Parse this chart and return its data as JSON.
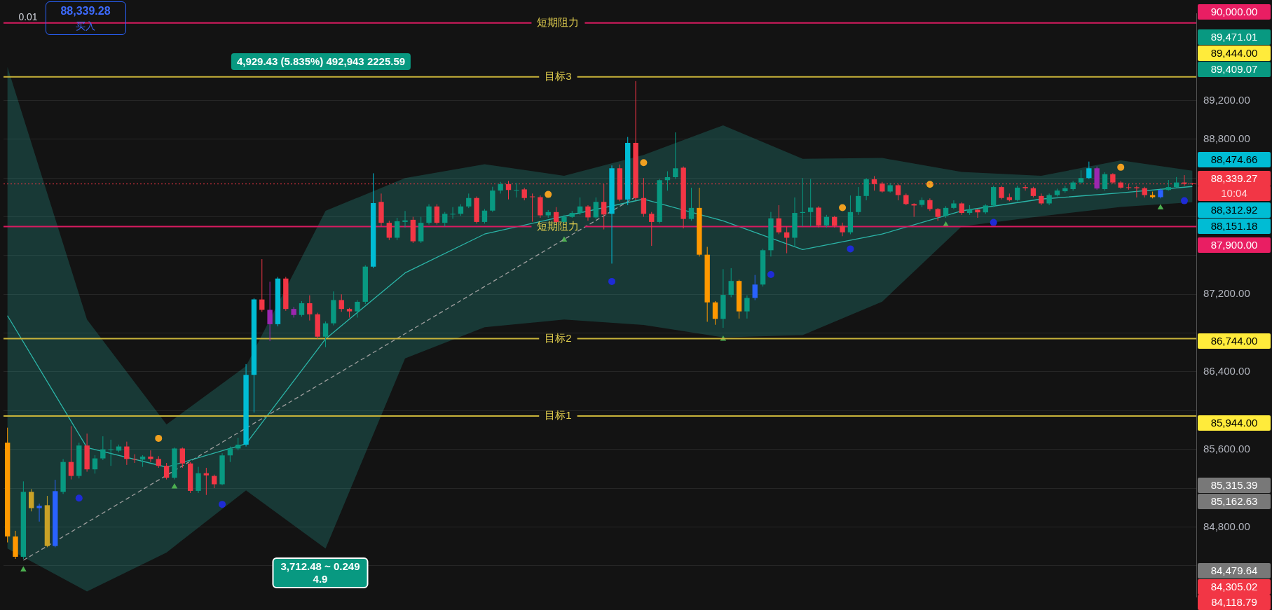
{
  "chart_data": {
    "type": "candlestick",
    "categories": [
      null,
      null,
      null,
      null,
      null,
      null,
      null,
      null,
      null,
      null,
      null,
      null,
      null,
      null,
      null,
      null,
      null,
      null,
      null,
      null,
      null,
      null,
      null,
      null,
      null,
      null,
      null,
      null,
      null,
      null,
      null,
      null,
      null,
      null,
      null,
      null,
      null,
      null,
      null,
      null,
      null,
      null,
      null,
      null,
      null,
      null,
      null,
      null,
      null,
      null,
      null,
      null,
      null,
      null,
      null,
      null,
      null,
      null,
      null,
      null,
      null,
      null,
      null,
      null,
      null,
      null,
      null,
      null,
      null,
      null,
      null,
      null,
      null,
      null,
      null,
      null,
      null,
      null,
      null,
      null,
      null,
      null,
      null,
      null,
      null,
      null,
      null,
      null,
      null,
      null,
      null,
      null,
      null,
      null,
      null,
      null,
      null,
      null,
      null,
      null,
      null,
      null,
      null,
      null,
      null,
      null,
      null,
      null,
      null,
      null,
      null,
      null,
      null,
      null,
      null,
      null,
      null,
      null,
      null,
      null,
      null,
      null,
      null,
      null,
      null,
      null,
      null,
      null,
      null,
      null,
      null,
      null,
      null,
      null,
      null,
      null,
      null,
      null,
      null,
      null,
      null,
      null,
      null,
      null,
      null,
      null,
      null,
      null,
      null,
      null
    ],
    "ohlc": [
      [
        85670,
        85824,
        84640,
        84701
      ],
      [
        84701,
        84760,
        84470,
        84492
      ],
      [
        84492,
        85270,
        84470,
        85162
      ],
      [
        85162,
        85190,
        84960,
        84994
      ],
      [
        84994,
        85040,
        84855,
        85018
      ],
      [
        84603,
        85120,
        84590,
        85024
      ],
      [
        84603,
        85286,
        84590,
        85169
      ],
      [
        85162,
        85500,
        85140,
        85470
      ],
      [
        85470,
        85840,
        85290,
        85326
      ],
      [
        85326,
        85670,
        85300,
        85640
      ],
      [
        85640,
        85763,
        85370,
        85394
      ],
      [
        85394,
        85540,
        85350,
        85507
      ],
      [
        85507,
        85735,
        85490,
        85600
      ],
      [
        85595,
        85700,
        85430,
        85600
      ],
      [
        85587,
        85650,
        85570,
        85630
      ],
      [
        85630,
        85680,
        85440,
        85501
      ],
      [
        85501,
        85550,
        85460,
        85495
      ],
      [
        85495,
        85540,
        85420,
        85526
      ],
      [
        85526,
        85590,
        85470,
        85501
      ],
      [
        85501,
        85530,
        85410,
        85430
      ],
      [
        85430,
        85460,
        85290,
        85308
      ],
      [
        85308,
        85620,
        85290,
        85609
      ],
      [
        85609,
        85620,
        85410,
        85455
      ],
      [
        85455,
        85470,
        85150,
        85172
      ],
      [
        85172,
        85420,
        85150,
        85354
      ],
      [
        85354,
        85410,
        85130,
        85332
      ],
      [
        85326,
        85340,
        85200,
        85240
      ],
      [
        85240,
        85560,
        85230,
        85538
      ],
      [
        85538,
        85630,
        85470,
        85609
      ],
      [
        85609,
        85720,
        85590,
        85649
      ],
      [
        85649,
        86480,
        85630,
        86369
      ],
      [
        86369,
        87160,
        85980,
        87147
      ],
      [
        87147,
        87563,
        87020,
        87040
      ],
      [
        87040,
        87330,
        86717,
        86892
      ],
      [
        86892,
        87380,
        86870,
        87363
      ],
      [
        87363,
        87380,
        87030,
        87049
      ],
      [
        87049,
        87070,
        86960,
        86987
      ],
      [
        86987,
        87130,
        86970,
        87108
      ],
      [
        87108,
        87190,
        86930,
        86994
      ],
      [
        86994,
        87010,
        86740,
        86763
      ],
      [
        86763,
        86920,
        86655,
        86901
      ],
      [
        86901,
        87230,
        86880,
        87141
      ],
      [
        87141,
        87200,
        87020,
        87049
      ],
      [
        87049,
        87060,
        86960,
        87024
      ],
      [
        87024,
        87140,
        86960,
        87123
      ],
      [
        87123,
        87500,
        87100,
        87486
      ],
      [
        87486,
        88449,
        87470,
        88141
      ],
      [
        88154,
        88240,
        87900,
        87938
      ],
      [
        87938,
        87960,
        87760,
        87784
      ],
      [
        87784,
        87990,
        87760,
        87954
      ],
      [
        87947,
        88060,
        87890,
        87963
      ],
      [
        87969,
        88000,
        87730,
        87747
      ],
      [
        87747,
        88000,
        87730,
        87938
      ],
      [
        87938,
        88130,
        87920,
        88107
      ],
      [
        88107,
        88130,
        87920,
        87938
      ],
      [
        87938,
        88050,
        87900,
        88031
      ],
      [
        88024,
        88100,
        87980,
        88031
      ],
      [
        88031,
        88130,
        88010,
        88107
      ],
      [
        88107,
        88240,
        88090,
        88194
      ],
      [
        88194,
        88210,
        87930,
        87947
      ],
      [
        87947,
        88080,
        87930,
        88064
      ],
      [
        88064,
        88310,
        88050,
        88271
      ],
      [
        88271,
        88360,
        88240,
        88338
      ],
      [
        88338,
        88370,
        88180,
        88277
      ],
      [
        88270,
        88350,
        88200,
        88277
      ],
      [
        88283,
        88300,
        88170,
        88194
      ],
      [
        88210,
        88240,
        87950,
        88203
      ],
      [
        88203,
        88220,
        87990,
        88015
      ],
      [
        88015,
        88070,
        87990,
        88049
      ],
      [
        88049,
        88100,
        87930,
        87947
      ],
      [
        87947,
        88020,
        87930,
        87999
      ],
      [
        87999,
        88060,
        87990,
        88040
      ],
      [
        88040,
        88200,
        88020,
        88107
      ],
      [
        88107,
        88120,
        87960,
        87994
      ],
      [
        87994,
        88200,
        87980,
        88154
      ],
      [
        88154,
        88340,
        87870,
        88024
      ],
      [
        88031,
        88530,
        87517,
        88501
      ],
      [
        88501,
        88540,
        88160,
        88178
      ],
      [
        88178,
        88824,
        88120,
        88763
      ],
      [
        88763,
        89400,
        88170,
        88194
      ],
      [
        88194,
        88400,
        88000,
        88031
      ],
      [
        88031,
        88050,
        87700,
        87947
      ],
      [
        87947,
        88390,
        87930,
        88378
      ],
      [
        88378,
        88470,
        88270,
        88409
      ],
      [
        88409,
        88871,
        88390,
        88501
      ],
      [
        88507,
        88520,
        87880,
        87978
      ],
      [
        87978,
        88300,
        87960,
        88092
      ],
      [
        88092,
        88300,
        87590,
        87609
      ],
      [
        87609,
        87690,
        86917,
        87117
      ],
      [
        87117,
        87130,
        86886,
        86947
      ],
      [
        86947,
        87460,
        86855,
        87194
      ],
      [
        87194,
        87470,
        87170,
        87338
      ],
      [
        87338,
        87350,
        86950,
        87024
      ],
      [
        87024,
        87190,
        86950,
        87163
      ],
      [
        87163,
        87400,
        87140,
        87301
      ],
      [
        87301,
        87670,
        87280,
        87655
      ],
      [
        87655,
        88050,
        87590,
        87984
      ],
      [
        87984,
        88120,
        87820,
        87840
      ],
      [
        87840,
        87900,
        87624,
        87784
      ],
      [
        87784,
        88200,
        87700,
        88040
      ],
      [
        88040,
        88400,
        87900,
        88049
      ],
      [
        88049,
        88390,
        87900,
        88095
      ],
      [
        88095,
        88110,
        87890,
        87911
      ],
      [
        87911,
        88020,
        87890,
        87999
      ],
      [
        87999,
        88010,
        87890,
        87907
      ],
      [
        87907,
        87940,
        87800,
        87840
      ],
      [
        87840,
        88220,
        87820,
        88049
      ],
      [
        88049,
        88307,
        88020,
        88215
      ],
      [
        88215,
        88400,
        88170,
        88387
      ],
      [
        88387,
        88420,
        88270,
        88338
      ],
      [
        88344,
        88360,
        88250,
        88261
      ],
      [
        88261,
        88350,
        88250,
        88326
      ],
      [
        88326,
        88340,
        88170,
        88224
      ],
      [
        88224,
        88240,
        88120,
        88132
      ],
      [
        88132,
        88140,
        88000,
        88117
      ],
      [
        88123,
        88200,
        88100,
        88172
      ],
      [
        88172,
        88190,
        88060,
        88080
      ],
      [
        88080,
        88090,
        87960,
        87999
      ],
      [
        88009,
        88110,
        87990,
        88092
      ],
      [
        88092,
        88170,
        88080,
        88138
      ],
      [
        88138,
        88150,
        88020,
        88040
      ],
      [
        88040,
        88120,
        88020,
        88074
      ],
      [
        88074,
        88080,
        87990,
        88046
      ],
      [
        88046,
        88130,
        88030,
        88117
      ],
      [
        88117,
        88320,
        88100,
        88307
      ],
      [
        88307,
        88320,
        88180,
        88194
      ],
      [
        88203,
        88240,
        88160,
        88172
      ],
      [
        88172,
        88320,
        88160,
        88301
      ],
      [
        88307,
        88330,
        88270,
        88295
      ],
      [
        88295,
        88310,
        88200,
        88215
      ],
      [
        88215,
        88240,
        88120,
        88138
      ],
      [
        88138,
        88240,
        88120,
        88224
      ],
      [
        88224,
        88290,
        88210,
        88271
      ],
      [
        88264,
        88320,
        88250,
        88295
      ],
      [
        88286,
        88370,
        88270,
        88354
      ],
      [
        88354,
        88480,
        88340,
        88400
      ],
      [
        88400,
        88570,
        88390,
        88501
      ],
      [
        88501,
        88520,
        88280,
        88292
      ],
      [
        88286,
        88460,
        88270,
        88440
      ],
      [
        88440,
        88450,
        88340,
        88354
      ],
      [
        88354,
        88370,
        88290,
        88301
      ],
      [
        88305,
        88340,
        88280,
        88301
      ],
      [
        88305,
        88320,
        88200,
        88295
      ],
      [
        88295,
        88310,
        88200,
        88224
      ],
      [
        88224,
        88260,
        88190,
        88203
      ],
      [
        88203,
        88290,
        88190,
        88277
      ],
      [
        88277,
        88380,
        88270,
        88307
      ],
      [
        88307,
        88410,
        88300,
        88354
      ],
      [
        88354,
        88430,
        88320,
        88341
      ],
      [
        88345,
        88350,
        88330,
        88339.27
      ]
    ],
    "colors": [
      "#ff9800",
      "#ff9800",
      "#089981",
      "#c9a227",
      "#2962ff",
      "#c9a227",
      "#2962ff",
      "#089981",
      "#f23645",
      "#089981",
      "#f23645",
      "#089981",
      "#089981",
      "#089981",
      "#089981",
      "#f23645",
      "#f23645",
      "#089981",
      "#f23645",
      "#f23645",
      "#f23645",
      "#089981",
      "#f23645",
      "#f23645",
      "#089981",
      "#f23645",
      "#f23645",
      "#089981",
      "#089981",
      "#089981",
      "#00bcd4",
      "#00bcd4",
      "#f23645",
      "#9c27b0",
      "#00bcd4",
      "#f23645",
      "#9c27b0",
      "#089981",
      "#f23645",
      "#f23645",
      "#089981",
      "#089981",
      "#f23645",
      "#f23645",
      "#089981",
      "#089981",
      "#00bcd4",
      "#f23645",
      "#f23645",
      "#089981",
      "#089981",
      "#f23645",
      "#089981",
      "#089981",
      "#f23645",
      "#089981",
      "#089981",
      "#089981",
      "#089981",
      "#f23645",
      "#089981",
      "#089981",
      "#089981",
      "#f23645",
      "#089981",
      "#f23645",
      "#f23645",
      "#f23645",
      "#089981",
      "#f23645",
      "#089981",
      "#089981",
      "#089981",
      "#f23645",
      "#089981",
      "#f23645",
      "#00bcd4",
      "#f23645",
      "#00bcd4",
      "#f23645",
      "#f23645",
      "#f23645",
      "#089981",
      "#089981",
      "#089981",
      "#f23645",
      "#089981",
      "#ff9800",
      "#ff9800",
      "#ff9800",
      "#089981",
      "#089981",
      "#ff9800",
      "#089981",
      "#2962ff",
      "#089981",
      "#089981",
      "#f23645",
      "#f23645",
      "#089981",
      "#089981",
      "#089981",
      "#f23645",
      "#089981",
      "#f23645",
      "#f23645",
      "#089981",
      "#089981",
      "#089981",
      "#f23645",
      "#f23645",
      "#089981",
      "#f23645",
      "#f23645",
      "#f23645",
      "#089981",
      "#f23645",
      "#f23645",
      "#089981",
      "#089981",
      "#f23645",
      "#089981",
      "#f23645",
      "#089981",
      "#089981",
      "#f23645",
      "#f23645",
      "#089981",
      "#f23645",
      "#f23645",
      "#f23645",
      "#089981",
      "#089981",
      "#089981",
      "#089981",
      "#089981",
      "#00bcd4",
      "#9c27b0",
      "#089981",
      "#f23645",
      "#f23645",
      "#f23645",
      "#f23645",
      "#f23645",
      "#ff9800",
      "#2962ff",
      "#089981",
      "#089981",
      "#f23645",
      "#f23645"
    ],
    "series": [
      {
        "type": "line",
        "color": "#2bb5a8",
        "values": [
          86980,
          null,
          null,
          null,
          null,
          null,
          null,
          null,
          null,
          null,
          85618,
          null,
          null,
          null,
          null,
          null,
          null,
          null,
          null,
          null,
          85417,
          null,
          null,
          null,
          null,
          null,
          null,
          null,
          null,
          null,
          85658,
          null,
          null,
          null,
          null,
          null,
          null,
          null,
          null,
          null,
          86740,
          null,
          null,
          null,
          null,
          null,
          null,
          null,
          null,
          null,
          87421,
          null,
          null,
          null,
          null,
          null,
          null,
          null,
          null,
          null,
          87822,
          null,
          null,
          null,
          null,
          null,
          null,
          null,
          null,
          null,
          88006,
          null,
          null,
          null,
          null,
          null,
          null,
          null,
          null,
          null,
          88183,
          null,
          null,
          null,
          null,
          null,
          null,
          null,
          null,
          null,
          87958,
          null,
          null,
          null,
          null,
          null,
          null,
          null,
          null,
          null,
          87662,
          null,
          null,
          null,
          null,
          null,
          null,
          null,
          null,
          null,
          87822,
          null,
          null,
          null,
          null,
          null,
          null,
          null,
          null,
          null,
          88062,
          null,
          null,
          null,
          null,
          null,
          null,
          null,
          null,
          null,
          88183,
          null,
          null,
          null,
          null,
          null,
          null,
          null,
          null,
          null,
          88247,
          null,
          null,
          null,
          null,
          null,
          null,
          null,
          null,
          88313
        ],
        "upper": [
          89545,
          null,
          null,
          null,
          null,
          null,
          null,
          null,
          null,
          null,
          86940,
          null,
          null,
          null,
          null,
          null,
          null,
          null,
          null,
          null,
          85858,
          null,
          null,
          null,
          null,
          null,
          null,
          null,
          null,
          null,
          86459,
          null,
          null,
          null,
          null,
          null,
          null,
          null,
          null,
          null,
          88062,
          null,
          null,
          null,
          null,
          null,
          null,
          null,
          null,
          null,
          88399,
          null,
          null,
          null,
          null,
          null,
          null,
          null,
          null,
          null,
          88543,
          null,
          null,
          null,
          null,
          null,
          null,
          null,
          null,
          null,
          88423,
          null,
          null,
          null,
          null,
          null,
          null,
          null,
          null,
          null,
          88639,
          null,
          null,
          null,
          null,
          null,
          null,
          null,
          null,
          null,
          88944,
          null,
          null,
          null,
          null,
          null,
          null,
          null,
          null,
          null,
          88599,
          null,
          null,
          null,
          null,
          null,
          null,
          null,
          null,
          null,
          88607,
          null,
          null,
          null,
          null,
          null,
          null,
          null,
          null,
          null,
          88463,
          null,
          null,
          null,
          null,
          null,
          null,
          null,
          null,
          null,
          88423,
          null,
          null,
          null,
          null,
          null,
          null,
          null,
          null,
          null,
          88583,
          null,
          null,
          null,
          null,
          null,
          null,
          null,
          null,
          88475
        ],
        "lower": [
          84576,
          null,
          null,
          null,
          null,
          null,
          null,
          null,
          null,
          null,
          84135,
          null,
          null,
          null,
          null,
          null,
          null,
          null,
          null,
          null,
          84536,
          null,
          null,
          null,
          null,
          null,
          null,
          null,
          null,
          null,
          85177,
          null,
          null,
          null,
          null,
          null,
          null,
          null,
          null,
          null,
          84576,
          null,
          null,
          null,
          null,
          null,
          null,
          null,
          null,
          null,
          86539,
          null,
          null,
          null,
          null,
          null,
          null,
          null,
          null,
          null,
          86860,
          null,
          null,
          null,
          null,
          null,
          null,
          null,
          null,
          null,
          86940,
          null,
          null,
          null,
          null,
          null,
          null,
          null,
          null,
          null,
          86884,
          null,
          null,
          null,
          null,
          null,
          null,
          null,
          null,
          null,
          86756,
          null,
          null,
          null,
          null,
          null,
          null,
          null,
          null,
          null,
          86780,
          null,
          null,
          null,
          null,
          null,
          null,
          null,
          null,
          null,
          87125,
          null,
          null,
          null,
          null,
          null,
          null,
          null,
          null,
          null,
          87902,
          null,
          null,
          null,
          null,
          null,
          null,
          null,
          null,
          null,
          88006,
          null,
          null,
          null,
          null,
          null,
          null,
          null,
          null,
          null,
          88102,
          null,
          null,
          null,
          null,
          null,
          null,
          null,
          null,
          88151
        ]
      },
      {
        "type": "line",
        "color": "#9e9e9e",
        "line_style": "dashed",
        "values": [
          null,
          null,
          84456,
          null,
          null,
          null,
          null,
          null,
          null,
          null,
          null,
          null,
          null,
          null,
          null,
          null,
          null,
          null,
          null,
          null,
          null,
          null,
          null,
          null,
          null,
          null,
          null,
          null,
          null,
          null,
          null,
          null,
          null,
          null,
          null,
          null,
          null,
          null,
          null,
          null,
          null,
          null,
          null,
          null,
          null,
          null,
          null,
          null,
          null,
          null,
          null,
          null,
          null,
          null,
          null,
          null,
          null,
          null,
          null,
          null,
          null,
          null,
          null,
          null,
          null,
          null,
          null,
          null,
          null,
          null,
          null,
          null,
          null,
          null,
          null,
          null,
          null,
          null,
          null,
          88206,
          null,
          null,
          null,
          null,
          null,
          null,
          null,
          null,
          null,
          null,
          null,
          null,
          null,
          null,
          null,
          null,
          null,
          null,
          null,
          null,
          null,
          null,
          null,
          null,
          null,
          null,
          null,
          null,
          null,
          null,
          null,
          null,
          null,
          null,
          null,
          null,
          null,
          null,
          null,
          null,
          null,
          null,
          null,
          null,
          null,
          null,
          null,
          null,
          null,
          null,
          null,
          null,
          null,
          null,
          null,
          null,
          null,
          null,
          null,
          null,
          null,
          null,
          null,
          null,
          null,
          null,
          null,
          null,
          null,
          null
        ]
      },
      {
        "type": "scatter",
        "color": "#4caf50",
        "marker": "triangle",
        "values": [
          null,
          null,
          84359,
          null,
          null,
          null,
          null,
          null,
          null,
          null,
          null,
          null,
          null,
          null,
          null,
          null,
          null,
          null,
          null,
          null,
          null,
          85215,
          null,
          null,
          null,
          null,
          null,
          null,
          null,
          null,
          null,
          null,
          null,
          null,
          null,
          null,
          null,
          null,
          null,
          null,
          null,
          null,
          null,
          null,
          null,
          null,
          null,
          null,
          null,
          null,
          null,
          null,
          null,
          null,
          null,
          null,
          null,
          null,
          null,
          null,
          null,
          null,
          null,
          null,
          null,
          null,
          null,
          null,
          null,
          null,
          87763,
          null,
          null,
          null,
          null,
          null,
          null,
          null,
          null,
          null,
          null,
          null,
          null,
          null,
          null,
          null,
          null,
          null,
          null,
          null,
          86740,
          null,
          null,
          null,
          null,
          null,
          null,
          null,
          null,
          null,
          null,
          null,
          null,
          null,
          null,
          null,
          null,
          null,
          null,
          null,
          null,
          null,
          null,
          null,
          null,
          null,
          null,
          null,
          87918,
          null,
          null,
          null,
          null,
          null,
          null,
          null,
          null,
          null,
          null,
          null,
          null,
          null,
          null,
          null,
          null,
          null,
          null,
          null,
          null,
          null,
          null,
          null,
          null,
          null,
          null,
          88094,
          null,
          null,
          null,
          null
        ]
      },
      {
        "type": "scatter",
        "color": "#1e2bd6",
        "marker": "circle",
        "values": [
          null,
          null,
          null,
          null,
          null,
          null,
          null,
          null,
          null,
          85097,
          null,
          null,
          null,
          null,
          null,
          null,
          null,
          null,
          null,
          null,
          null,
          null,
          null,
          null,
          null,
          null,
          null,
          85033,
          null,
          null,
          null,
          null,
          null,
          null,
          null,
          null,
          null,
          null,
          null,
          null,
          null,
          null,
          null,
          null,
          null,
          null,
          null,
          null,
          null,
          null,
          null,
          null,
          null,
          null,
          null,
          null,
          null,
          null,
          null,
          null,
          null,
          null,
          null,
          null,
          null,
          null,
          null,
          null,
          null,
          null,
          null,
          null,
          null,
          null,
          null,
          null,
          87333,
          null,
          null,
          null,
          null,
          null,
          null,
          null,
          null,
          null,
          null,
          null,
          null,
          null,
          null,
          null,
          null,
          null,
          null,
          null,
          87405,
          null,
          null,
          null,
          null,
          null,
          null,
          null,
          null,
          null,
          87669,
          null,
          null,
          null,
          null,
          null,
          null,
          null,
          null,
          null,
          null,
          null,
          null,
          null,
          null,
          null,
          null,
          null,
          87942,
          null,
          null,
          null,
          null,
          null,
          null,
          null,
          null,
          null,
          null,
          null,
          null,
          null,
          null,
          null,
          null,
          null,
          null,
          null,
          null,
          null,
          null,
          null,
          88166,
          null
        ]
      },
      {
        "type": "scatter",
        "color": "#f0a020",
        "marker": "circle",
        "values": [
          null,
          null,
          null,
          null,
          null,
          null,
          null,
          null,
          null,
          null,
          null,
          null,
          null,
          null,
          null,
          null,
          null,
          null,
          null,
          85714,
          null,
          null,
          null,
          null,
          null,
          null,
          null,
          null,
          null,
          null,
          null,
          null,
          null,
          null,
          null,
          null,
          null,
          null,
          null,
          null,
          null,
          null,
          null,
          null,
          null,
          null,
          null,
          null,
          null,
          null,
          null,
          null,
          null,
          null,
          null,
          null,
          null,
          null,
          null,
          null,
          null,
          null,
          null,
          null,
          null,
          null,
          null,
          null,
          88231,
          null,
          null,
          null,
          null,
          null,
          null,
          null,
          null,
          null,
          null,
          null,
          88559,
          null,
          null,
          null,
          null,
          null,
          null,
          null,
          null,
          null,
          null,
          null,
          null,
          null,
          null,
          null,
          null,
          null,
          null,
          null,
          null,
          null,
          null,
          null,
          null,
          88094,
          null,
          null,
          null,
          null,
          null,
          null,
          null,
          null,
          null,
          null,
          88335,
          null,
          null,
          null,
          null,
          null,
          null,
          null,
          null,
          null,
          null,
          null,
          null,
          null,
          null,
          null,
          null,
          null,
          null,
          null,
          null,
          null,
          null,
          null,
          88511,
          null,
          null,
          null,
          null,
          null,
          null,
          null,
          null,
          null
        ]
      }
    ],
    "ylim": [
      84080,
      90100
    ],
    "yticks": [
      {
        "value": 84400,
        "label": null
      },
      {
        "value": 84800,
        "label": "84,800.00"
      },
      {
        "value": 85200,
        "label": null
      },
      {
        "value": 85600,
        "label": "85,600.00"
      },
      {
        "value": 86000,
        "label": null
      },
      {
        "value": 86400,
        "label": "86,400.00"
      },
      {
        "value": 86800,
        "label": null
      },
      {
        "value": 87200,
        "label": "87,200.00"
      },
      {
        "value": 87600,
        "label": null
      },
      {
        "value": 88000,
        "label": null
      },
      {
        "value": 88400,
        "label": null
      },
      {
        "value": 88800,
        "label": "88,800.00"
      },
      {
        "value": 89200,
        "label": "89,200.00"
      }
    ],
    "grid": "y",
    "tick_labels": "y",
    "ref_lines": [
      {
        "axis": "y",
        "value": 90000,
        "label": "短期阻力",
        "color": "#d81b60"
      },
      {
        "axis": "y",
        "value": 89444,
        "label": "目标3",
        "color": "#c8b33a"
      },
      {
        "axis": "y",
        "value": 87900,
        "label": "短期阻力",
        "color": "#d81b60"
      },
      {
        "axis": "y",
        "value": 86744,
        "label": "目标2",
        "color": "#c8b33a"
      },
      {
        "axis": "y",
        "value": 85944,
        "label": "目标1",
        "color": "#c8b33a"
      },
      {
        "axis": "y",
        "value": 88339.27,
        "color": "#f23645",
        "line_style": "dotted"
      }
    ],
    "annotations": [
      "0.01",
      "88,339.28",
      "买入",
      "4,929.43 (5.835%) 492,943 2225.59",
      "3,712.48 ~ 0.249\n4.9",
      "90,000.00",
      "89,471.01",
      "89,444.00",
      "89,409.07",
      "88,474.66",
      "88,339.27",
      "10:04",
      "88,312.92",
      "88,151.18",
      "87,900.00",
      "86,744.00",
      "85,944.00",
      "85,315.39",
      "85,162.63",
      "84,479.64",
      "84,305.02",
      "84,118.79"
    ]
  }
}
